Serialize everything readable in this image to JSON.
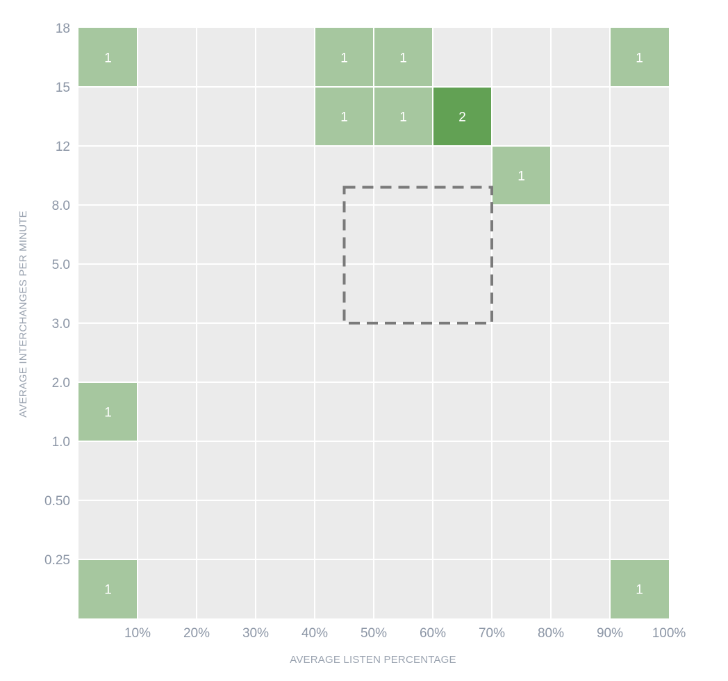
{
  "chart_data": {
    "type": "heatmap",
    "title": "",
    "xlabel": "AVERAGE LISTEN PERCENTAGE",
    "ylabel": "AVERAGE INTERCHANGES PER MINUTE",
    "x_tick_labels": [
      "10%",
      "20%",
      "30%",
      "40%",
      "50%",
      "60%",
      "70%",
      "80%",
      "90%",
      "100%"
    ],
    "y_tick_labels": [
      "18",
      "15",
      "12",
      "8.0",
      "5.0",
      "3.0",
      "2.0",
      "1.0",
      "0.50",
      "0.25"
    ],
    "x_bins": [
      "0-10%",
      "10-20%",
      "20-30%",
      "30-40%",
      "40-50%",
      "50-60%",
      "60-70%",
      "70-80%",
      "80-90%",
      "90-100%"
    ],
    "y_bins": [
      "15-18",
      "12-15",
      "8.0-12",
      "5.0-8.0",
      "3.0-5.0",
      "2.0-3.0",
      "1.0-2.0",
      "0.50-1.0",
      "0.25-0.50",
      "0-0.25"
    ],
    "cells": [
      {
        "x_bin": 0,
        "y_bin": 0,
        "value": 1,
        "label": "1"
      },
      {
        "x_bin": 4,
        "y_bin": 0,
        "value": 1,
        "label": "1"
      },
      {
        "x_bin": 5,
        "y_bin": 0,
        "value": 1,
        "label": "1"
      },
      {
        "x_bin": 9,
        "y_bin": 0,
        "value": 1,
        "label": "1"
      },
      {
        "x_bin": 4,
        "y_bin": 1,
        "value": 1,
        "label": "1"
      },
      {
        "x_bin": 5,
        "y_bin": 1,
        "value": 1,
        "label": "1"
      },
      {
        "x_bin": 6,
        "y_bin": 1,
        "value": 2,
        "label": "2"
      },
      {
        "x_bin": 7,
        "y_bin": 2,
        "value": 1,
        "label": "1"
      },
      {
        "x_bin": 0,
        "y_bin": 6,
        "value": 1,
        "label": "1"
      },
      {
        "x_bin": 0,
        "y_bin": 9,
        "value": 1,
        "label": "1"
      },
      {
        "x_bin": 9,
        "y_bin": 9,
        "value": 1,
        "label": "1"
      }
    ],
    "highlight_region": {
      "x_from": 0.45,
      "x_to": 0.7,
      "y_from_bin": 2.7,
      "y_to_bin": 5
    },
    "grid": true,
    "colors": {
      "background_cell": "#ebebeb",
      "grid_line": "#ffffff",
      "value_1": "#a6c79f",
      "value_2": "#62a154",
      "highlight_stroke": "#7a7a7a",
      "tick_text": "#8c96a6",
      "axis_label_text": "#9aa3b0"
    }
  }
}
